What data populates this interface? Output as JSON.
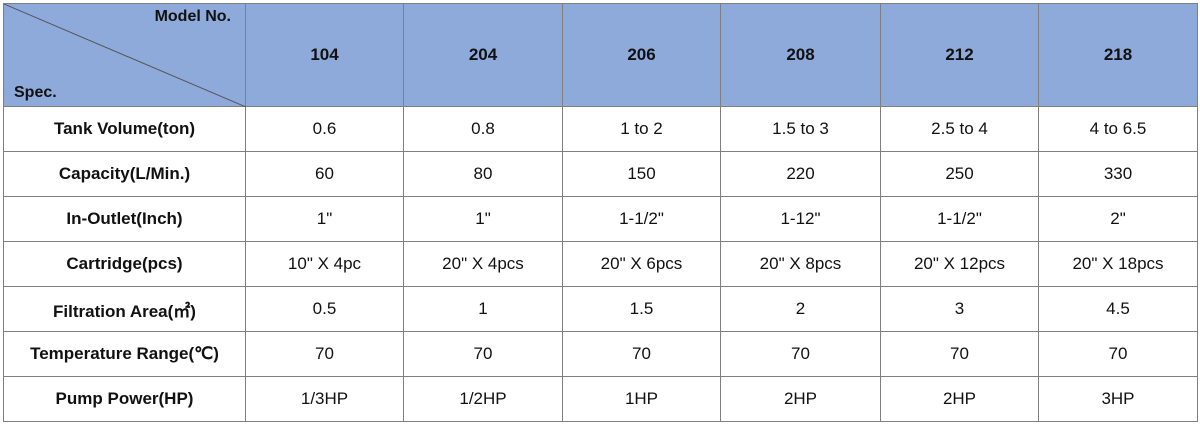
{
  "header": {
    "corner_top": "Model No.",
    "corner_bottom": "Spec.",
    "models": [
      "104",
      "204",
      "206",
      "208",
      "212",
      "218"
    ]
  },
  "rows": [
    {
      "label": "Tank Volume(ton)",
      "values": [
        "0.6",
        "0.8",
        "1 to 2",
        "1.5 to 3",
        "2.5 to 4",
        "4 to 6.5"
      ]
    },
    {
      "label": "Capacity(L/Min.)",
      "values": [
        "60",
        "80",
        "150",
        "220",
        "250",
        "330"
      ]
    },
    {
      "label": "In-Outlet(Inch)",
      "values": [
        "1\"",
        "1\"",
        "1-1/2\"",
        "1-12\"",
        "1-1/2\"",
        "2\""
      ]
    },
    {
      "label": "Cartridge(pcs)",
      "values": [
        "10\" X 4pc",
        "20\" X 4pcs",
        "20\" X 6pcs",
        "20\" X 8pcs",
        "20\" X 12pcs",
        "20\" X 18pcs"
      ]
    },
    {
      "label": "Filtration Area(㎡)",
      "values": [
        "0.5",
        "1",
        "1.5",
        "2",
        "3",
        "4.5"
      ]
    },
    {
      "label": "Temperature Range(℃)",
      "values": [
        "70",
        "70",
        "70",
        "70",
        "70",
        "70"
      ]
    },
    {
      "label": "Pump Power(HP)",
      "values": [
        "1/3HP",
        "1/2HP",
        "1HP",
        "2HP",
        "2HP",
        "3HP"
      ]
    }
  ]
}
